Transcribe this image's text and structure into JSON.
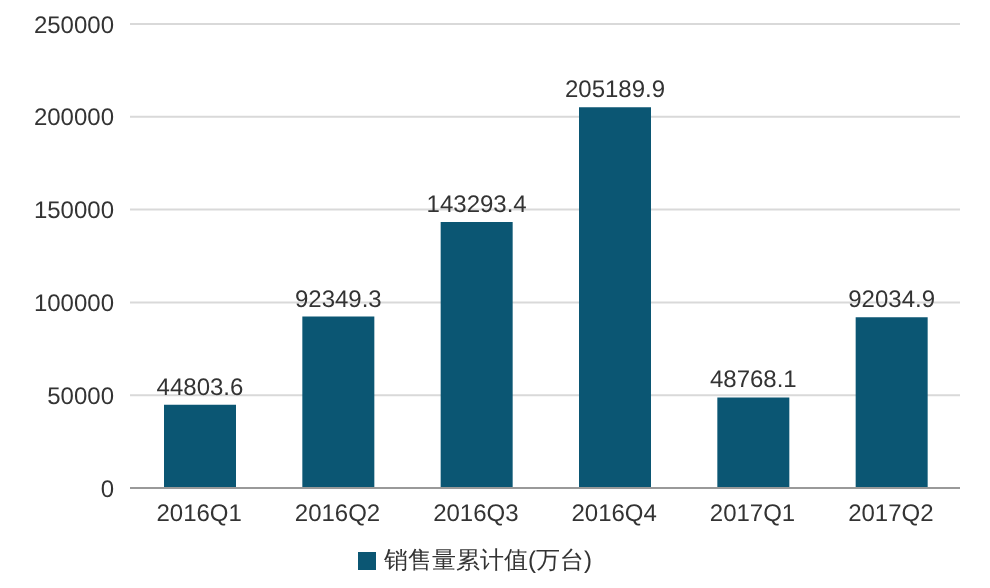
{
  "chart_data": {
    "type": "bar",
    "categories": [
      "2016Q1",
      "2016Q2",
      "2016Q3",
      "2016Q4",
      "2017Q1",
      "2017Q2"
    ],
    "series": [
      {
        "name": "销售量累计值(万台)",
        "color": "#0b5673",
        "values": [
          44803.6,
          92349.3,
          143293.4,
          205189.9,
          48768.1,
          92034.9
        ]
      }
    ],
    "ylim": [
      0,
      250000
    ],
    "yticks": [
      0,
      50000,
      100000,
      150000,
      200000,
      250000
    ],
    "grid": "y",
    "legend": "bottom",
    "data_labels": true
  }
}
